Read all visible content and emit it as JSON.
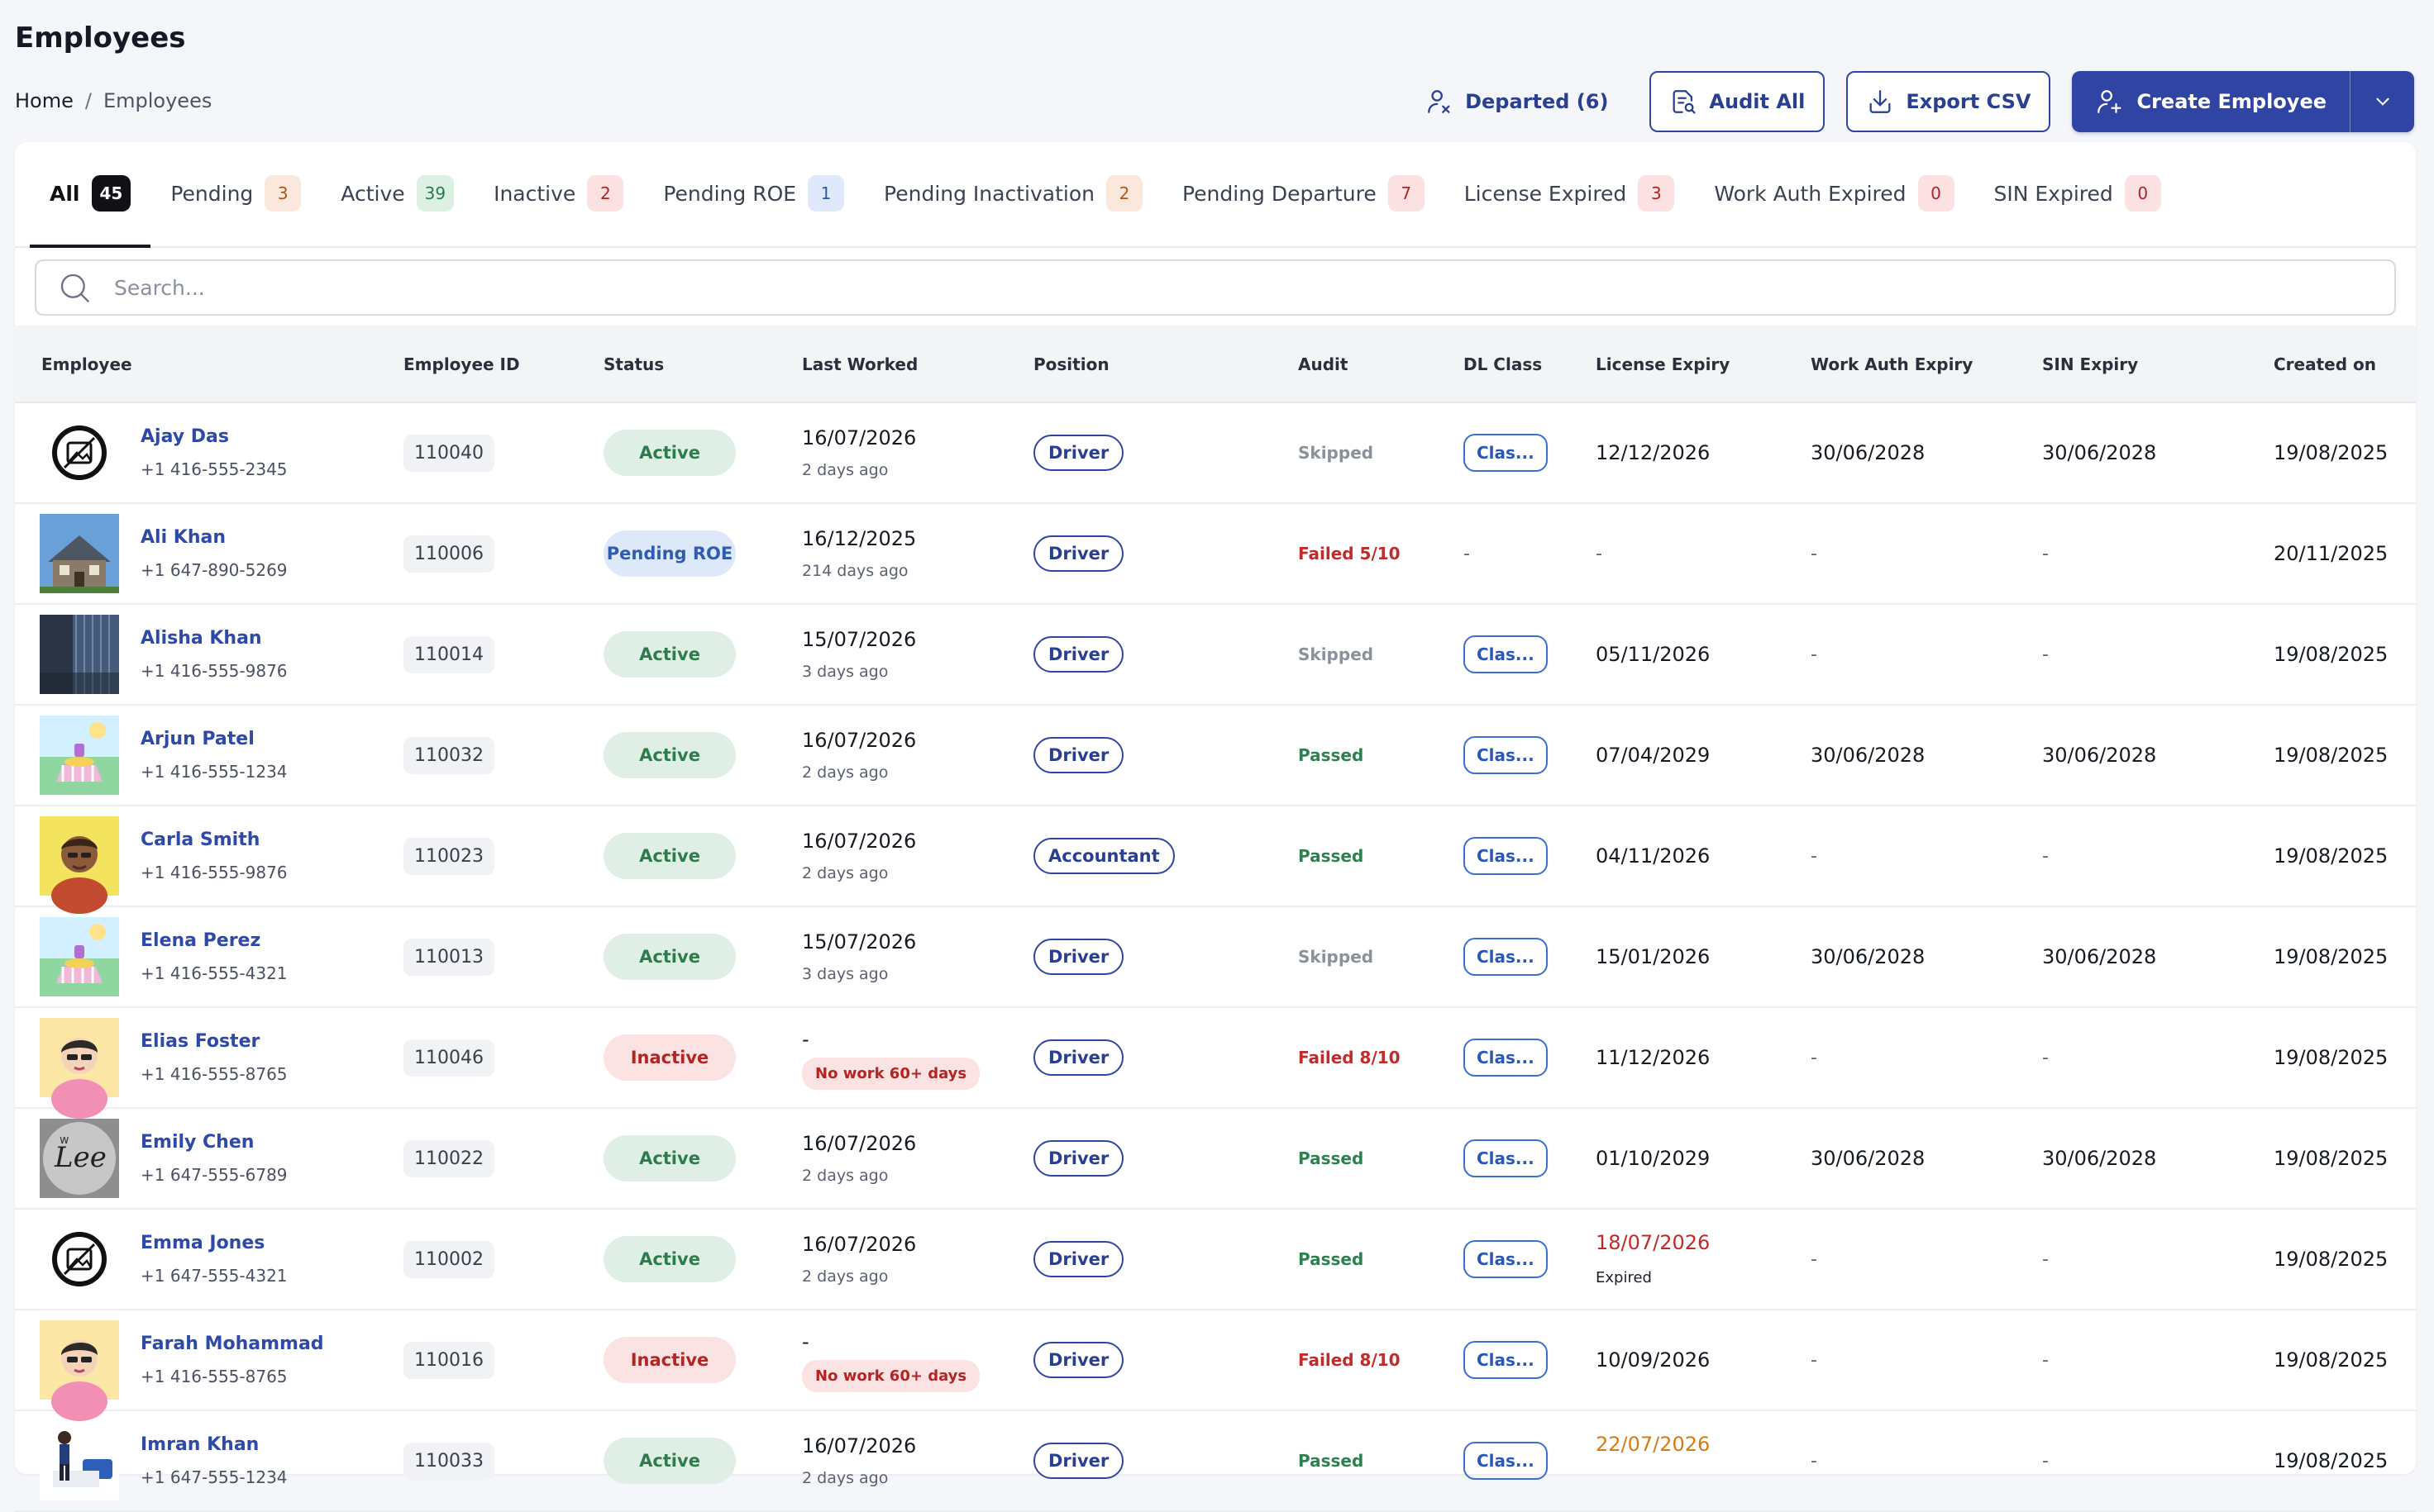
{
  "page": {
    "title": "Employees"
  },
  "breadcrumb": {
    "home": "Home",
    "separator": "/",
    "current": "Employees"
  },
  "actions": {
    "departed": "Departed (6)",
    "audit_all": "Audit All",
    "export_csv": "Export CSV",
    "create_employee": "Create Employee"
  },
  "tabs": [
    {
      "label": "All",
      "count": "45",
      "tone": "active"
    },
    {
      "label": "Pending",
      "count": "3",
      "tone": "orange"
    },
    {
      "label": "Active",
      "count": "39",
      "tone": "green"
    },
    {
      "label": "Inactive",
      "count": "2",
      "tone": "red"
    },
    {
      "label": "Pending ROE",
      "count": "1",
      "tone": "blue"
    },
    {
      "label": "Pending Inactivation",
      "count": "2",
      "tone": "orange"
    },
    {
      "label": "Pending Departure",
      "count": "7",
      "tone": "red"
    },
    {
      "label": "License Expired",
      "count": "3",
      "tone": "red"
    },
    {
      "label": "Work Auth Expired",
      "count": "0",
      "tone": "red"
    },
    {
      "label": "SIN Expired",
      "count": "0",
      "tone": "red"
    }
  ],
  "search": {
    "placeholder": "Search..."
  },
  "columns": {
    "employee": "Employee",
    "employee_id": "Employee ID",
    "status": "Status",
    "last_worked": "Last Worked",
    "position": "Position",
    "audit": "Audit",
    "dl_class": "DL Class",
    "license_expiry": "License Expiry",
    "work_auth_expiry": "Work Auth Expiry",
    "sin_expiry": "SIN Expiry",
    "created_on": "Created on"
  },
  "employees": [
    {
      "name": "Ajay Das",
      "phone": "+1 416-555-2345",
      "avatar": "placeholder-image-icon",
      "id": "110040",
      "status": "Active",
      "last_worked": "16/07/2026",
      "last_worked_sub": "2 days ago",
      "last_worked_tag": "",
      "position": "Driver",
      "audit": "Skipped",
      "dl_class": "Clas...",
      "license_expiry": "12/12/2026",
      "license_note": "",
      "license_tone": "normal",
      "work_auth_expiry": "30/06/2028",
      "sin_expiry": "30/06/2028",
      "created_on": "19/08/2025"
    },
    {
      "name": "Ali Khan",
      "phone": "+1 647-890-5269",
      "avatar": "house-photo",
      "id": "110006",
      "status": "Pending ROE",
      "last_worked": "16/12/2025",
      "last_worked_sub": "214 days ago",
      "last_worked_tag": "",
      "position": "Driver",
      "audit": "Failed 5/10",
      "dl_class": "-",
      "license_expiry": "-",
      "license_note": "",
      "license_tone": "normal",
      "work_auth_expiry": "-",
      "sin_expiry": "-",
      "created_on": "20/11/2025"
    },
    {
      "name": "Alisha Khan",
      "phone": "+1 416-555-9876",
      "avatar": "building-photo",
      "id": "110014",
      "status": "Active",
      "last_worked": "15/07/2026",
      "last_worked_sub": "3 days ago",
      "last_worked_tag": "",
      "position": "Driver",
      "audit": "Skipped",
      "dl_class": "Clas...",
      "license_expiry": "05/11/2026",
      "license_note": "",
      "license_tone": "normal",
      "work_auth_expiry": "-",
      "sin_expiry": "-",
      "created_on": "19/08/2025"
    },
    {
      "name": "Arjun Patel",
      "phone": "+1 416-555-1234",
      "avatar": "picnic-illustration",
      "id": "110032",
      "status": "Active",
      "last_worked": "16/07/2026",
      "last_worked_sub": "2 days ago",
      "last_worked_tag": "",
      "position": "Driver",
      "audit": "Passed",
      "dl_class": "Clas...",
      "license_expiry": "07/04/2029",
      "license_note": "",
      "license_tone": "normal",
      "work_auth_expiry": "30/06/2028",
      "sin_expiry": "30/06/2028",
      "created_on": "19/08/2025"
    },
    {
      "name": "Carla Smith",
      "phone": "+1 416-555-9876",
      "avatar": "person-yellow-illustration",
      "id": "110023",
      "status": "Active",
      "last_worked": "16/07/2026",
      "last_worked_sub": "2 days ago",
      "last_worked_tag": "",
      "position": "Accountant",
      "audit": "Passed",
      "dl_class": "Clas...",
      "license_expiry": "04/11/2026",
      "license_note": "",
      "license_tone": "normal",
      "work_auth_expiry": "-",
      "sin_expiry": "-",
      "created_on": "19/08/2025"
    },
    {
      "name": "Elena Perez",
      "phone": "+1 416-555-4321",
      "avatar": "picnic-illustration",
      "id": "110013",
      "status": "Active",
      "last_worked": "15/07/2026",
      "last_worked_sub": "3 days ago",
      "last_worked_tag": "",
      "position": "Driver",
      "audit": "Skipped",
      "dl_class": "Clas...",
      "license_expiry": "15/01/2026",
      "license_note": "",
      "license_tone": "normal",
      "work_auth_expiry": "30/06/2028",
      "sin_expiry": "30/06/2028",
      "created_on": "19/08/2025"
    },
    {
      "name": "Elias Foster",
      "phone": "+1 416-555-8765",
      "avatar": "person-pink-illustration",
      "id": "110046",
      "status": "Inactive",
      "last_worked": "-",
      "last_worked_sub": "",
      "last_worked_tag": "No work 60+ days",
      "position": "Driver",
      "audit": "Failed 8/10",
      "dl_class": "Clas...",
      "license_expiry": "11/12/2026",
      "license_note": "",
      "license_tone": "normal",
      "work_auth_expiry": "-",
      "sin_expiry": "-",
      "created_on": "19/08/2025"
    },
    {
      "name": "Emily Chen",
      "phone": "+1 647-555-6789",
      "avatar": "lettering-photo",
      "id": "110022",
      "status": "Active",
      "last_worked": "16/07/2026",
      "last_worked_sub": "2 days ago",
      "last_worked_tag": "",
      "position": "Driver",
      "audit": "Passed",
      "dl_class": "Clas...",
      "license_expiry": "01/10/2029",
      "license_note": "",
      "license_tone": "normal",
      "work_auth_expiry": "30/06/2028",
      "sin_expiry": "30/06/2028",
      "created_on": "19/08/2025"
    },
    {
      "name": "Emma Jones",
      "phone": "+1 647-555-4321",
      "avatar": "placeholder-image-icon",
      "id": "110002",
      "status": "Active",
      "last_worked": "16/07/2026",
      "last_worked_sub": "2 days ago",
      "last_worked_tag": "",
      "position": "Driver",
      "audit": "Passed",
      "dl_class": "Clas...",
      "license_expiry": "18/07/2026",
      "license_note": "Expired",
      "license_tone": "red",
      "work_auth_expiry": "-",
      "sin_expiry": "-",
      "created_on": "19/08/2025"
    },
    {
      "name": "Farah Mohammad",
      "phone": "+1 416-555-8765",
      "avatar": "person-pink-illustration",
      "id": "110016",
      "status": "Inactive",
      "last_worked": "-",
      "last_worked_sub": "",
      "last_worked_tag": "No work 60+ days",
      "position": "Driver",
      "audit": "Failed 8/10",
      "dl_class": "Clas...",
      "license_expiry": "10/09/2026",
      "license_note": "",
      "license_tone": "normal",
      "work_auth_expiry": "-",
      "sin_expiry": "-",
      "created_on": "19/08/2025"
    },
    {
      "name": "Imran Khan",
      "phone": "+1 647-555-1234",
      "avatar": "delivery-illustration",
      "id": "110033",
      "status": "Active",
      "last_worked": "16/07/2026",
      "last_worked_sub": "2 days ago",
      "last_worked_tag": "",
      "position": "Driver",
      "audit": "Passed",
      "dl_class": "Clas...",
      "license_expiry": "22/07/2026",
      "license_note": "",
      "license_tone": "orange",
      "work_auth_expiry": "-",
      "sin_expiry": "-",
      "created_on": "19/08/2025"
    }
  ]
}
